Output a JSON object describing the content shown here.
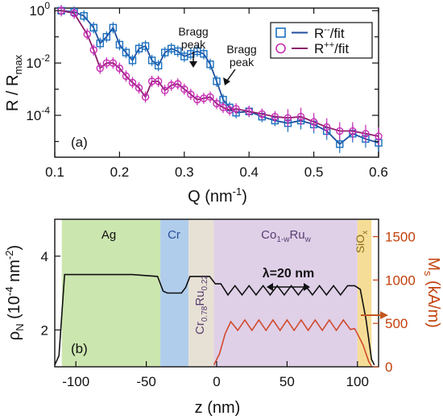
{
  "chart_data": [
    {
      "type": "line",
      "panel_label": "(a)",
      "xlabel": "Q (nm",
      "xlabel_sup": "-1",
      "xlabel_end": ")",
      "ylabel_main": "R / R",
      "ylabel_sub": "max",
      "xlim": [
        0.1,
        0.6
      ],
      "ylim_log10": [
        -5.6,
        0.1
      ],
      "y_scale": "log",
      "x_ticks": [
        0.1,
        0.2,
        0.3,
        0.4,
        0.5,
        0.6
      ],
      "x_tick_labels": [
        "0.1",
        "0.2",
        "0.3",
        "0.4",
        "0.5",
        "0.6"
      ],
      "y_tick_labels": [
        {
          "base": "10",
          "exp": "0",
          "log": 0
        },
        {
          "base": "10",
          "exp": "-2",
          "log": -2
        },
        {
          "base": "10",
          "exp": "-4",
          "log": -4
        }
      ],
      "legend": {
        "placement": "top-right",
        "entries": [
          {
            "base": "R",
            "sup": "--",
            "suffix": "/fit",
            "color": "#1a6fbf"
          },
          {
            "base": "R",
            "sup": "++",
            "suffix": "/fit",
            "color": "#c72bb4"
          }
        ]
      },
      "annotations": [
        {
          "line1": "Bragg",
          "line2": "peak",
          "x": 0.313,
          "y_log": -1.5
        },
        {
          "line1": "Bragg",
          "line2": "peak",
          "x": 0.36,
          "y_log": -2.3
        }
      ],
      "series": [
        {
          "name": "R--",
          "marker": "square",
          "color": "#1a6fbf",
          "fit_color": "#1f4e9c",
          "x": [
            0.11,
            0.13,
            0.145,
            0.16,
            0.17,
            0.18,
            0.19,
            0.2,
            0.21,
            0.22,
            0.23,
            0.24,
            0.25,
            0.26,
            0.27,
            0.28,
            0.29,
            0.3,
            0.31,
            0.32,
            0.33,
            0.34,
            0.35,
            0.36,
            0.37,
            0.38,
            0.4,
            0.42,
            0.44,
            0.46,
            0.48,
            0.5,
            0.52,
            0.54,
            0.56,
            0.58,
            0.6
          ],
          "y_log": [
            0.0,
            -0.05,
            -0.2,
            -0.65,
            -1.25,
            -1.0,
            -0.65,
            -1.3,
            -1.6,
            -1.9,
            -1.45,
            -1.35,
            -1.9,
            -2.1,
            -1.6,
            -1.45,
            -1.55,
            -1.75,
            -1.65,
            -1.55,
            -1.65,
            -2.05,
            -2.7,
            -3.4,
            -3.7,
            -3.9,
            -3.85,
            -4.05,
            -4.2,
            -4.3,
            -4.2,
            -4.35,
            -4.6,
            -5.1,
            -4.7,
            -4.9,
            -5.05
          ]
        },
        {
          "name": "R++",
          "marker": "circle",
          "color": "#c72bb4",
          "fit_color": "#8b1e6b",
          "x": [
            0.11,
            0.13,
            0.15,
            0.16,
            0.17,
            0.18,
            0.19,
            0.2,
            0.21,
            0.22,
            0.23,
            0.24,
            0.25,
            0.26,
            0.27,
            0.28,
            0.29,
            0.3,
            0.31,
            0.32,
            0.33,
            0.34,
            0.35,
            0.36,
            0.37,
            0.38,
            0.4,
            0.42,
            0.44,
            0.46,
            0.48,
            0.5,
            0.52,
            0.54,
            0.56,
            0.58,
            0.6
          ],
          "y_log": [
            0.0,
            -0.1,
            -0.9,
            -1.5,
            -2.2,
            -2.0,
            -2.0,
            -2.2,
            -2.5,
            -2.75,
            -2.95,
            -3.3,
            -2.7,
            -2.7,
            -3.05,
            -2.85,
            -2.8,
            -3.0,
            -3.2,
            -3.4,
            -3.35,
            -3.3,
            -3.55,
            -3.7,
            -3.8,
            -3.75,
            -3.85,
            -3.95,
            -4.05,
            -4.1,
            -4.05,
            -4.25,
            -4.45,
            -4.6,
            -4.6,
            -4.7,
            -4.8
          ]
        }
      ]
    },
    {
      "type": "line",
      "panel_label": "(b)",
      "xlabel": "z (nm)",
      "ylabel_left_main": "ρ",
      "ylabel_left_sub": "N",
      "ylabel_left_rest": " (10",
      "ylabel_left_sup": "-4",
      "ylabel_left_rest2": " nm",
      "ylabel_left_sup2": "-2",
      "ylabel_left_end": ")",
      "ylabel_right_main": "M",
      "ylabel_right_sub": "s",
      "ylabel_right_rest": " (kA/m)",
      "xlim": [
        -115,
        115
      ],
      "ylim_left": [
        1.0,
        5.0
      ],
      "ylim_right": [
        0,
        1700
      ],
      "x_ticks": [
        -100,
        -50,
        0,
        50,
        100
      ],
      "x_tick_labels": [
        "-100",
        "-50",
        "0",
        "50",
        "100"
      ],
      "y_left_ticks": [
        2,
        4
      ],
      "y_left_tick_labels": [
        "2",
        "4"
      ],
      "y_right_ticks": [
        0,
        500,
        1000,
        1500
      ],
      "y_right_tick_labels": [
        "0",
        "500",
        "1000",
        "1500"
      ],
      "regions": [
        {
          "label": "Ag",
          "from": -110,
          "to": -40,
          "color": "#c6e3a6",
          "text_color": "#5a7a2a"
        },
        {
          "label": "Cr",
          "from": -40,
          "to": -20,
          "color": "#a9c8ea",
          "text_color": "#2a4f99"
        },
        {
          "label_main": "Cr",
          "label_sub1": "0.78",
          "label_mid": "Ru",
          "label_sub2": "0.22",
          "from": -20,
          "to": -2,
          "color": "#e4ded0",
          "text_color": "#5a3d70"
        },
        {
          "label_main": "Co",
          "label_sub1": "1-w",
          "label_mid": "Ru",
          "label_sub2": "w",
          "from": -2,
          "to": 100,
          "color": "#dccbe6",
          "text_color": "#5a3d70"
        },
        {
          "label_main": "SiO",
          "label_sub1": "x",
          "from": 100,
          "to": 110,
          "color": "#f5d98c",
          "text_color": "#8a6d1a"
        }
      ],
      "annotation": {
        "text": "λ=20 nm",
        "x_from": 40,
        "x_to": 60,
        "y": 3.4
      },
      "series": [
        {
          "name": "rho_N",
          "axis": "left",
          "color": "#111111",
          "x": [
            -115,
            -112,
            -108,
            -100,
            -60,
            -42,
            -38,
            -35,
            -25,
            -22,
            -19,
            -15,
            -5,
            -1,
            3,
            8,
            13,
            18,
            23,
            28,
            33,
            38,
            43,
            48,
            53,
            58,
            63,
            68,
            73,
            78,
            83,
            88,
            93,
            98,
            102,
            106,
            110,
            112
          ],
          "y": [
            1.05,
            1.3,
            3.5,
            3.5,
            3.5,
            3.45,
            3.05,
            3.0,
            3.0,
            3.15,
            3.45,
            3.45,
            3.45,
            3.25,
            3.25,
            2.95,
            3.2,
            2.95,
            3.2,
            2.95,
            3.2,
            2.95,
            3.2,
            2.95,
            3.2,
            2.95,
            3.2,
            2.95,
            3.2,
            2.95,
            3.2,
            2.95,
            3.2,
            3.2,
            3.1,
            2.3,
            1.2,
            1.05
          ]
        },
        {
          "name": "M_s",
          "axis": "right",
          "color": "#d24a2e",
          "x": [
            -2,
            2,
            6,
            10,
            15,
            20,
            25,
            30,
            35,
            40,
            45,
            50,
            55,
            60,
            65,
            70,
            75,
            80,
            85,
            90,
            95,
            98,
            100,
            104,
            108,
            110
          ],
          "y": [
            20,
            150,
            380,
            520,
            420,
            540,
            420,
            540,
            420,
            540,
            420,
            540,
            420,
            540,
            420,
            540,
            420,
            540,
            420,
            540,
            430,
            440,
            380,
            250,
            60,
            10
          ]
        }
      ],
      "arrow": {
        "x": 104,
        "y_right": 450,
        "color": "#c2571f"
      }
    }
  ]
}
